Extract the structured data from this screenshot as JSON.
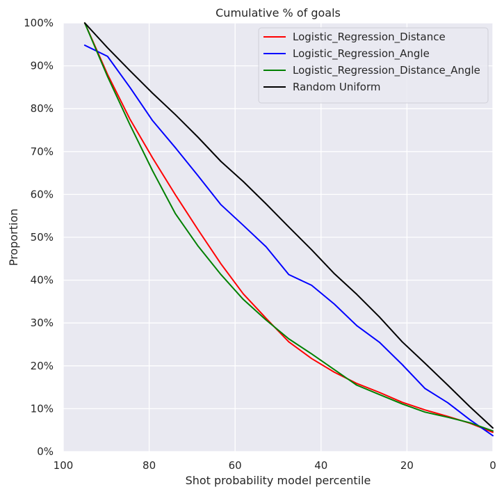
{
  "chart_data": {
    "type": "line",
    "title": "Cumulative % of goals",
    "xlabel": "Shot probability model percentile",
    "ylabel": "Proportion",
    "xlim": [
      100,
      0
    ],
    "ylim": [
      0,
      1
    ],
    "x_ticks": [
      100,
      80,
      60,
      40,
      20,
      0
    ],
    "x_tick_labels": [
      "100",
      "80",
      "60",
      "40",
      "20",
      "0"
    ],
    "y_ticks": [
      0,
      0.1,
      0.2,
      0.3,
      0.4,
      0.5,
      0.6,
      0.7,
      0.8,
      0.9,
      1.0
    ],
    "y_tick_labels": [
      "0%",
      "10%",
      "20%",
      "30%",
      "40%",
      "50%",
      "60%",
      "70%",
      "80%",
      "90%",
      "100%"
    ],
    "grid": true,
    "legend_position": "top-right",
    "background": "#e9e9f1",
    "grid_color": "#ffffff",
    "series": [
      {
        "name": "Logistic_Regression_Distance",
        "color": "#ff0000",
        "x": [
          95,
          89.7,
          84.5,
          79.2,
          73.9,
          68.6,
          63.3,
          58.1,
          52.8,
          47.5,
          42.2,
          36.9,
          31.7,
          26.4,
          21.1,
          15.8,
          10.5,
          5.3,
          0
        ],
        "y": [
          1.0,
          0.88,
          0.776,
          0.685,
          0.599,
          0.517,
          0.438,
          0.368,
          0.311,
          0.256,
          0.217,
          0.185,
          0.159,
          0.138,
          0.115,
          0.097,
          0.082,
          0.066,
          0.045
        ]
      },
      {
        "name": "Logistic_Regression_Angle",
        "color": "#0000ff",
        "x": [
          95,
          89.7,
          84.5,
          79.2,
          73.9,
          68.6,
          63.3,
          58.1,
          52.8,
          47.5,
          42.2,
          36.9,
          31.7,
          26.4,
          21.1,
          15.8,
          10.5,
          5.3,
          0
        ],
        "y": [
          0.948,
          0.922,
          0.85,
          0.772,
          0.709,
          0.643,
          0.576,
          0.528,
          0.478,
          0.413,
          0.388,
          0.344,
          0.294,
          0.255,
          0.203,
          0.147,
          0.114,
          0.074,
          0.037
        ]
      },
      {
        "name": "Logistic_Regression_Distance_Angle",
        "color": "#008000",
        "x": [
          95,
          89.7,
          84.5,
          79.2,
          73.9,
          68.6,
          63.3,
          58.1,
          52.8,
          47.5,
          42.2,
          36.9,
          31.7,
          26.4,
          21.1,
          15.8,
          10.5,
          5.3,
          0
        ],
        "y": [
          1.0,
          0.875,
          0.763,
          0.655,
          0.555,
          0.479,
          0.413,
          0.355,
          0.307,
          0.263,
          0.228,
          0.191,
          0.155,
          0.133,
          0.111,
          0.092,
          0.08,
          0.067,
          0.048
        ]
      },
      {
        "name": "Random Uniform",
        "color": "#000000",
        "x": [
          95,
          89.7,
          84.5,
          79.2,
          73.9,
          68.6,
          63.3,
          58.1,
          52.8,
          47.5,
          42.2,
          36.9,
          31.7,
          26.4,
          21.1,
          15.8,
          10.5,
          5.3,
          0
        ],
        "y": [
          1.0,
          0.942,
          0.889,
          0.836,
          0.786,
          0.733,
          0.677,
          0.63,
          0.578,
          0.524,
          0.471,
          0.415,
          0.367,
          0.314,
          0.256,
          0.206,
          0.155,
          0.104,
          0.055
        ]
      }
    ]
  }
}
